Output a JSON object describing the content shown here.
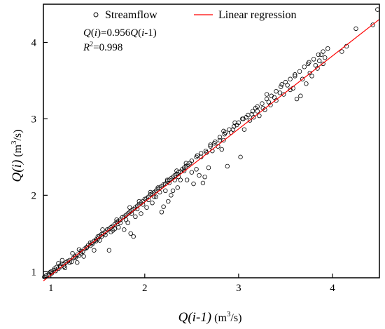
{
  "chart_data": {
    "type": "scatter",
    "title": "",
    "xlabel": {
      "main": "Q",
      "paren": "(i-1)",
      "unit_pre": " (m",
      "unit_sup": "3",
      "unit_post": "/s)"
    },
    "ylabel": {
      "main": "Q",
      "paren": "(i)",
      "unit_pre": " (m",
      "unit_sup": "3",
      "unit_post": "/s)"
    },
    "xlim": [
      0.92,
      4.5
    ],
    "ylim": [
      0.92,
      4.5
    ],
    "xticks": [
      "1",
      "2",
      "3",
      "4"
    ],
    "yticks": [
      "1",
      "2",
      "3",
      "4"
    ],
    "legend_position": "top",
    "legend": {
      "scatter_label": "Streamflow",
      "line_label": "Linear regression"
    },
    "annotation": {
      "eq": {
        "q1": "Q",
        "p1": "(",
        "i1": "i",
        "p2": ")=0.956",
        "q2": "Q",
        "p3": "(",
        "i2": "i",
        "p4": "-1)"
      },
      "r2": {
        "r": "R",
        "sup": "2",
        "val": "=0.998"
      }
    },
    "line_color": "#ff0000",
    "marker_color": "#000000",
    "regression": {
      "slope": 0.956,
      "x_range": [
        0.92,
        4.5
      ]
    },
    "series": [
      {
        "name": "Streamflow",
        "points": [
          [
            0.93,
            0.93
          ],
          [
            0.95,
            0.95
          ],
          [
            0.97,
            0.96
          ],
          [
            0.99,
            0.99
          ],
          [
            1.01,
            0.98
          ],
          [
            1.03,
            1.02
          ],
          [
            1.05,
            1.01
          ],
          [
            1.06,
            1.06
          ],
          [
            1.08,
            1.04
          ],
          [
            1.1,
            1.08
          ],
          [
            1.12,
            1.1
          ],
          [
            1.14,
            1.07
          ],
          [
            1.16,
            1.12
          ],
          [
            1.18,
            1.14
          ],
          [
            1.2,
            1.15
          ],
          [
            1.22,
            1.13
          ],
          [
            1.24,
            1.18
          ],
          [
            1.26,
            1.2
          ],
          [
            1.28,
            1.22
          ],
          [
            1.3,
            1.21
          ],
          [
            1.32,
            1.27
          ],
          [
            1.34,
            1.26
          ],
          [
            1.36,
            1.3
          ],
          [
            1.38,
            1.31
          ],
          [
            1.4,
            1.35
          ],
          [
            1.42,
            1.34
          ],
          [
            1.44,
            1.38
          ],
          [
            1.46,
            1.4
          ],
          [
            1.48,
            1.42
          ],
          [
            1.5,
            1.43
          ],
          [
            1.52,
            1.47
          ],
          [
            1.54,
            1.49
          ],
          [
            1.56,
            1.5
          ],
          [
            1.58,
            1.52
          ],
          [
            1.6,
            1.55
          ],
          [
            1.62,
            1.56
          ],
          [
            1.64,
            1.58
          ],
          [
            1.66,
            1.6
          ],
          [
            1.68,
            1.62
          ],
          [
            1.7,
            1.65
          ],
          [
            1.72,
            1.66
          ],
          [
            1.74,
            1.68
          ],
          [
            1.76,
            1.71
          ],
          [
            1.78,
            1.72
          ],
          [
            1.8,
            1.74
          ],
          [
            1.82,
            1.76
          ],
          [
            1.84,
            1.78
          ],
          [
            1.86,
            1.8
          ],
          [
            1.88,
            1.82
          ],
          [
            1.9,
            1.84
          ],
          [
            1.92,
            1.86
          ],
          [
            1.94,
            1.88
          ],
          [
            1.96,
            1.9
          ],
          [
            1.98,
            1.92
          ],
          [
            2.0,
            1.95
          ],
          [
            2.02,
            1.96
          ],
          [
            2.04,
            1.98
          ],
          [
            2.06,
            2.01
          ],
          [
            2.08,
            2.02
          ],
          [
            2.1,
            2.04
          ],
          [
            2.12,
            2.06
          ],
          [
            2.14,
            2.08
          ],
          [
            2.16,
            2.1
          ],
          [
            2.18,
            2.12
          ],
          [
            2.2,
            2.14
          ],
          [
            2.22,
            2.15
          ],
          [
            2.24,
            2.18
          ],
          [
            2.26,
            2.2
          ],
          [
            2.28,
            2.22
          ],
          [
            2.3,
            2.24
          ],
          [
            2.32,
            2.26
          ],
          [
            2.34,
            2.28
          ],
          [
            2.36,
            2.3
          ],
          [
            2.38,
            2.31
          ],
          [
            2.4,
            2.34
          ],
          [
            2.42,
            2.36
          ],
          [
            2.44,
            2.38
          ],
          [
            2.46,
            2.4
          ],
          [
            2.5,
            2.45
          ],
          [
            2.55,
            2.5
          ],
          [
            2.6,
            2.55
          ],
          [
            2.65,
            2.58
          ],
          [
            2.7,
            2.64
          ],
          [
            2.75,
            2.7
          ],
          [
            2.8,
            2.76
          ],
          [
            2.85,
            2.8
          ],
          [
            2.9,
            2.86
          ],
          [
            2.95,
            2.9
          ],
          [
            3.0,
            2.95
          ],
          [
            3.05,
            3.0
          ],
          [
            3.1,
            3.05
          ],
          [
            3.15,
            3.1
          ],
          [
            3.2,
            3.16
          ],
          [
            3.25,
            3.2
          ],
          [
            3.3,
            3.26
          ],
          [
            3.35,
            3.3
          ],
          [
            3.4,
            3.36
          ],
          [
            3.45,
            3.42
          ],
          [
            3.5,
            3.48
          ],
          [
            3.55,
            3.52
          ],
          [
            3.6,
            3.58
          ],
          [
            3.65,
            3.62
          ],
          [
            3.7,
            3.68
          ],
          [
            3.75,
            3.74
          ],
          [
            3.8,
            3.78
          ],
          [
            3.85,
            3.84
          ],
          [
            3.9,
            3.88
          ],
          [
            3.95,
            3.92
          ],
          [
            4.1,
            3.88
          ],
          [
            4.15,
            3.95
          ],
          [
            4.25,
            4.18
          ],
          [
            4.43,
            4.23
          ],
          [
            4.48,
            4.43
          ],
          [
            1.08,
            1.11
          ],
          [
            1.15,
            1.05
          ],
          [
            1.23,
            1.24
          ],
          [
            1.28,
            1.12
          ],
          [
            1.35,
            1.2
          ],
          [
            1.42,
            1.38
          ],
          [
            1.46,
            1.28
          ],
          [
            1.52,
            1.41
          ],
          [
            1.55,
            1.55
          ],
          [
            1.62,
            1.28
          ],
          [
            1.66,
            1.54
          ],
          [
            1.72,
            1.58
          ],
          [
            1.78,
            1.55
          ],
          [
            1.82,
            1.64
          ],
          [
            1.85,
            1.5
          ],
          [
            1.88,
            1.46
          ],
          [
            1.9,
            1.72
          ],
          [
            1.96,
            1.76
          ],
          [
            2.02,
            1.84
          ],
          [
            2.08,
            1.9
          ],
          [
            2.12,
            1.98
          ],
          [
            2.18,
            1.78
          ],
          [
            2.2,
            1.85
          ],
          [
            2.22,
            2.06
          ],
          [
            2.25,
            1.92
          ],
          [
            2.28,
            2.0
          ],
          [
            2.3,
            2.06
          ],
          [
            2.35,
            2.1
          ],
          [
            2.38,
            2.2
          ],
          [
            2.45,
            2.2
          ],
          [
            2.5,
            2.3
          ],
          [
            2.52,
            2.15
          ],
          [
            2.55,
            2.34
          ],
          [
            2.58,
            2.26
          ],
          [
            2.62,
            2.16
          ],
          [
            2.64,
            2.24
          ],
          [
            2.68,
            2.36
          ],
          [
            2.72,
            2.58
          ],
          [
            2.78,
            2.64
          ],
          [
            2.82,
            2.6
          ],
          [
            2.84,
            2.72
          ],
          [
            2.88,
            2.38
          ],
          [
            2.92,
            2.82
          ],
          [
            3.02,
            2.5
          ],
          [
            3.06,
            2.86
          ],
          [
            3.12,
            2.98
          ],
          [
            3.16,
            3.02
          ],
          [
            3.22,
            3.04
          ],
          [
            3.28,
            3.12
          ],
          [
            3.34,
            3.18
          ],
          [
            3.4,
            3.24
          ],
          [
            3.48,
            3.32
          ],
          [
            3.55,
            3.38
          ],
          [
            3.62,
            3.26
          ],
          [
            3.66,
            3.3
          ],
          [
            3.72,
            3.46
          ],
          [
            3.78,
            3.56
          ],
          [
            3.84,
            3.66
          ],
          [
            3.9,
            3.72
          ],
          [
            3.92,
            3.8
          ],
          [
            3.86,
            3.76
          ],
          [
            3.82,
            3.7
          ],
          [
            3.76,
            3.6
          ],
          [
            3.68,
            3.52
          ],
          [
            3.58,
            3.4
          ],
          [
            3.52,
            3.44
          ],
          [
            3.44,
            3.34
          ],
          [
            3.38,
            3.28
          ],
          [
            3.32,
            3.22
          ],
          [
            3.26,
            3.14
          ],
          [
            3.2,
            3.1
          ],
          [
            3.14,
            3.06
          ],
          [
            3.08,
            3.02
          ],
          [
            2.98,
            2.92
          ],
          [
            2.94,
            2.86
          ],
          [
            2.86,
            2.82
          ],
          [
            2.8,
            2.72
          ],
          [
            2.74,
            2.68
          ],
          [
            2.66,
            2.56
          ],
          [
            2.6,
            2.5
          ],
          [
            2.48,
            2.42
          ],
          [
            2.42,
            2.32
          ],
          [
            2.36,
            2.24
          ],
          [
            2.32,
            2.2
          ],
          [
            2.26,
            2.16
          ],
          [
            2.16,
            2.04
          ],
          [
            2.1,
            1.98
          ],
          [
            2.04,
            1.94
          ],
          [
            1.98,
            1.88
          ],
          [
            1.92,
            1.82
          ],
          [
            1.86,
            1.76
          ],
          [
            1.8,
            1.68
          ],
          [
            1.74,
            1.64
          ],
          [
            1.68,
            1.56
          ],
          [
            1.64,
            1.52
          ],
          [
            1.58,
            1.48
          ],
          [
            1.54,
            1.46
          ],
          [
            1.48,
            1.4
          ],
          [
            1.44,
            1.36
          ],
          [
            1.38,
            1.32
          ],
          [
            1.32,
            1.24
          ],
          [
            1.26,
            1.18
          ],
          [
            1.2,
            1.12
          ],
          [
            1.14,
            1.1
          ],
          [
            1.1,
            1.06
          ],
          [
            1.04,
            1.04
          ],
          [
            1.0,
            1.0
          ],
          [
            0.98,
            0.97
          ],
          [
            1.12,
            1.15
          ],
          [
            1.3,
            1.29
          ],
          [
            1.5,
            1.46
          ],
          [
            1.7,
            1.68
          ],
          [
            1.84,
            1.84
          ],
          [
            1.94,
            1.92
          ],
          [
            2.06,
            2.04
          ],
          [
            2.14,
            2.1
          ],
          [
            2.24,
            2.2
          ],
          [
            2.34,
            2.32
          ],
          [
            2.44,
            2.42
          ],
          [
            2.56,
            2.52
          ],
          [
            2.7,
            2.66
          ],
          [
            2.84,
            2.84
          ],
          [
            2.96,
            2.95
          ],
          [
            3.04,
            3.0
          ],
          [
            3.18,
            3.14
          ],
          [
            3.3,
            3.32
          ],
          [
            3.46,
            3.45
          ],
          [
            3.6,
            3.56
          ],
          [
            3.74,
            3.72
          ],
          [
            3.88,
            3.84
          ]
        ]
      }
    ]
  }
}
